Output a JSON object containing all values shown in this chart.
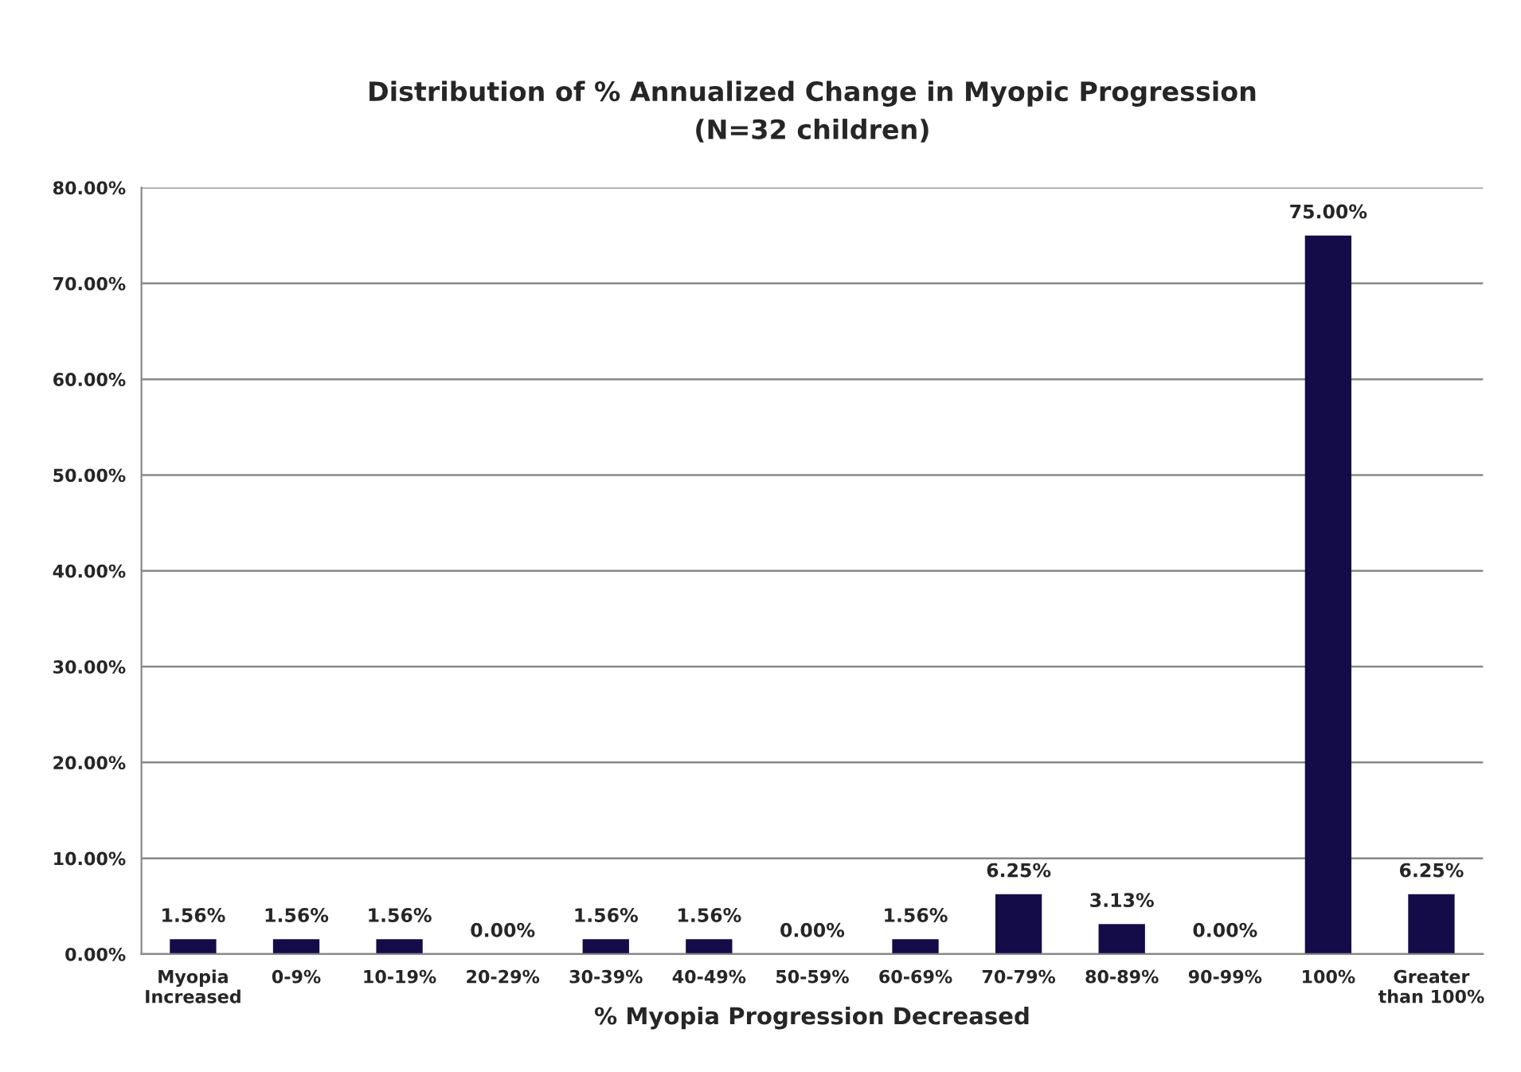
{
  "chart_data": {
    "type": "bar",
    "title": "Distribution of % Annualized Change in Myopic Progression\n(N=32 children)",
    "xlabel": "% Myopia Progression Decreased",
    "categories": [
      "Myopia\nIncreased",
      "0-9%",
      "10-19%",
      "20-29%",
      "30-39%",
      "40-49%",
      "50-59%",
      "60-69%",
      "70-79%",
      "80-89%",
      "90-99%",
      "100%",
      "Greater\nthan 100%"
    ],
    "values": [
      1.56,
      1.56,
      1.56,
      0,
      1.56,
      1.56,
      0,
      1.56,
      6.25,
      3.13,
      0,
      75,
      6.25
    ],
    "value_labels": [
      "1.56%",
      "1.56%",
      "1.56%",
      "0.00%",
      "1.56%",
      "1.56%",
      "0.00%",
      "1.56%",
      "6.25%",
      "3.13%",
      "0.00%",
      "75.00%",
      "6.25%"
    ],
    "color": "#140c48",
    "ylim": [
      0,
      80
    ],
    "yticks": [
      {
        "value": 0,
        "label": "0.00%"
      },
      {
        "value": 10,
        "label": "10.00%"
      },
      {
        "value": 20,
        "label": "20.00%"
      },
      {
        "value": 30,
        "label": "30.00%"
      },
      {
        "value": 40,
        "label": "40.00%"
      },
      {
        "value": 50,
        "label": "50.00%"
      },
      {
        "value": 60,
        "label": "60.00%"
      },
      {
        "value": 70,
        "label": "70.00%"
      },
      {
        "value": 80,
        "label": "80.00%"
      }
    ],
    "grid": "y",
    "legend": false
  }
}
